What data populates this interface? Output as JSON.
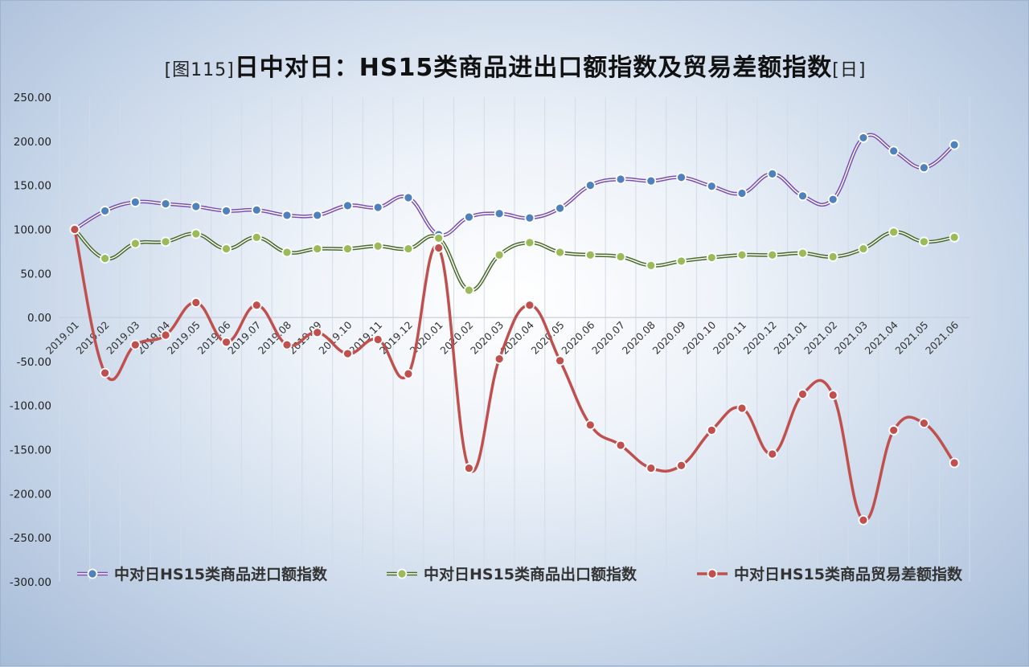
{
  "title": {
    "prefix": "[图115]",
    "main": "日中对日：HS15类商品进出口额指数及贸易差额指数",
    "suffix": "[日]"
  },
  "chart_data": {
    "type": "line",
    "smooth": true,
    "categories": [
      "2019.01",
      "2019.02",
      "2019.03",
      "2019.04",
      "2019.05",
      "2019.06",
      "2019.07",
      "2019.08",
      "2019.09",
      "2019.10",
      "2019.11",
      "2019.12",
      "2020.01",
      "2020.02",
      "2020.03",
      "2020.04",
      "2020.05",
      "2020.06",
      "2020.07",
      "2020.08",
      "2020.09",
      "2020.10",
      "2020.11",
      "2020.12",
      "2021.01",
      "2021.02",
      "2021.03",
      "2021.04",
      "2021.05",
      "2021.06"
    ],
    "ylim": [
      -300,
      250
    ],
    "yticks": [
      "250.00",
      "200.00",
      "150.00",
      "100.00",
      "50.00",
      "0.00",
      "-50.00",
      "-100.00",
      "-150.00",
      "-200.00",
      "-250.00",
      "-300.00"
    ],
    "grid": "vertical",
    "legend_position": "bottom",
    "series": [
      {
        "name": "中对日HS15类商品进口额指数",
        "color": "#7a4fb0",
        "marker_color": "#4f81bd",
        "values": [
          100,
          121,
          131,
          129,
          126,
          121,
          122,
          116,
          116,
          127,
          125,
          136,
          94,
          114,
          118,
          113,
          124,
          150,
          157,
          155,
          159,
          149,
          141,
          163,
          138,
          134,
          204,
          189,
          170,
          196
        ]
      },
      {
        "name": "中对日HS15类商品出口额指数",
        "color": "#4a6a2a",
        "marker_color": "#9bbb59",
        "values": [
          100,
          67,
          84,
          86,
          95,
          78,
          91,
          74,
          78,
          78,
          81,
          78,
          90,
          31,
          71,
          85,
          74,
          71,
          69,
          59,
          64,
          68,
          71,
          71,
          73,
          69,
          78,
          97,
          86,
          91
        ]
      },
      {
        "name": "中对日HS15类商品贸易差额指数",
        "color": "#c0504d",
        "marker_color": "#c0504d",
        "values": [
          100,
          -63,
          -31,
          -20,
          17,
          -28,
          14,
          -31,
          -17,
          -41,
          -25,
          -64,
          79,
          -171,
          -47,
          14,
          -49,
          -122,
          -145,
          -171,
          -168,
          -128,
          -103,
          -155,
          -87,
          -88,
          -230,
          -128,
          -120,
          -165
        ]
      }
    ]
  }
}
